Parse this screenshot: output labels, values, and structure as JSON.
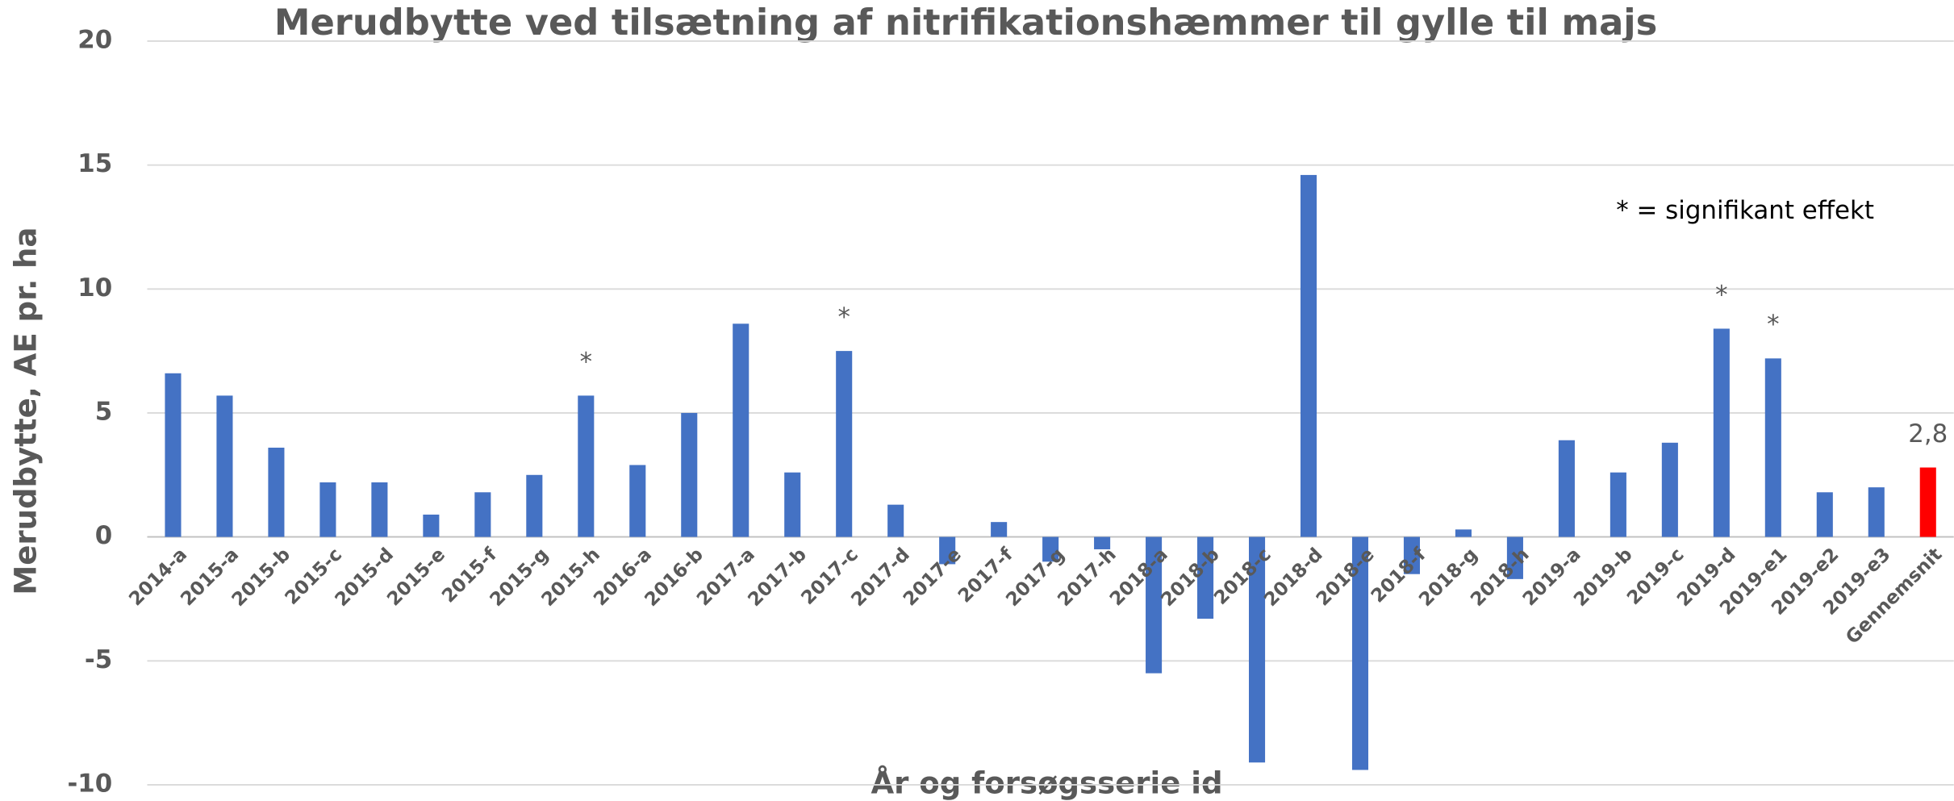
{
  "chart_data": {
    "type": "bar",
    "title": "Merudbytte ved tilsætning af nitrifikationshæmmer til gylle til majs",
    "y_label": "Merudbytte, AE pr. ha",
    "x_label": "År og forsøgsserie id",
    "note": "* = signifikant effekt",
    "categories": [
      "2014-a",
      "2015-a",
      "2015-b",
      "2015-c",
      "2015-d",
      "2015-e",
      "2015-f",
      "2015-g",
      "2015-h",
      "2016-a",
      "2016-b",
      "2017-a",
      "2017-b",
      "2017-c",
      "2017-d",
      "2017-e",
      "2017-f",
      "2017-g",
      "2017-h",
      "2018-a",
      "2018-b",
      "2018-c",
      "2018-d",
      "2018-e",
      "2018-f",
      "2018-g",
      "2018-h",
      "2019-a",
      "2019-b",
      "2019-c",
      "2019-d",
      "2019-e1",
      "2019-e2",
      "2019-e3",
      "Gennemsnit"
    ],
    "values": [
      6.6,
      5.7,
      3.6,
      2.2,
      2.2,
      0.9,
      1.8,
      2.5,
      5.7,
      2.9,
      5.0,
      8.6,
      2.6,
      7.5,
      1.3,
      -1.1,
      0.6,
      -1.0,
      -0.5,
      -5.5,
      -3.3,
      -9.1,
      14.6,
      -9.4,
      -1.5,
      0.3,
      -1.7,
      3.9,
      2.6,
      3.8,
      8.4,
      7.2,
      1.8,
      2.0,
      2.8
    ],
    "value_labels": [
      null,
      null,
      null,
      null,
      null,
      null,
      null,
      null,
      null,
      null,
      null,
      null,
      null,
      null,
      null,
      null,
      null,
      null,
      null,
      null,
      null,
      null,
      null,
      null,
      null,
      null,
      null,
      null,
      null,
      null,
      null,
      null,
      null,
      null,
      "2,8"
    ],
    "markers": [
      null,
      null,
      null,
      null,
      null,
      null,
      null,
      null,
      "*",
      null,
      null,
      null,
      null,
      "*",
      null,
      null,
      null,
      null,
      null,
      null,
      null,
      null,
      null,
      null,
      null,
      null,
      null,
      null,
      null,
      null,
      "*",
      "*",
      null,
      null,
      null
    ],
    "colors": [
      "#4472c4",
      "#4472c4",
      "#4472c4",
      "#4472c4",
      "#4472c4",
      "#4472c4",
      "#4472c4",
      "#4472c4",
      "#4472c4",
      "#4472c4",
      "#4472c4",
      "#4472c4",
      "#4472c4",
      "#4472c4",
      "#4472c4",
      "#4472c4",
      "#4472c4",
      "#4472c4",
      "#4472c4",
      "#4472c4",
      "#4472c4",
      "#4472c4",
      "#4472c4",
      "#4472c4",
      "#4472c4",
      "#4472c4",
      "#4472c4",
      "#4472c4",
      "#4472c4",
      "#4472c4",
      "#4472c4",
      "#4472c4",
      "#4472c4",
      "#4472c4",
      "#ff0000"
    ],
    "ylim": [
      -10,
      20
    ],
    "yticks": [
      -10,
      -5,
      0,
      5,
      10,
      15,
      20
    ],
    "grid": true
  }
}
